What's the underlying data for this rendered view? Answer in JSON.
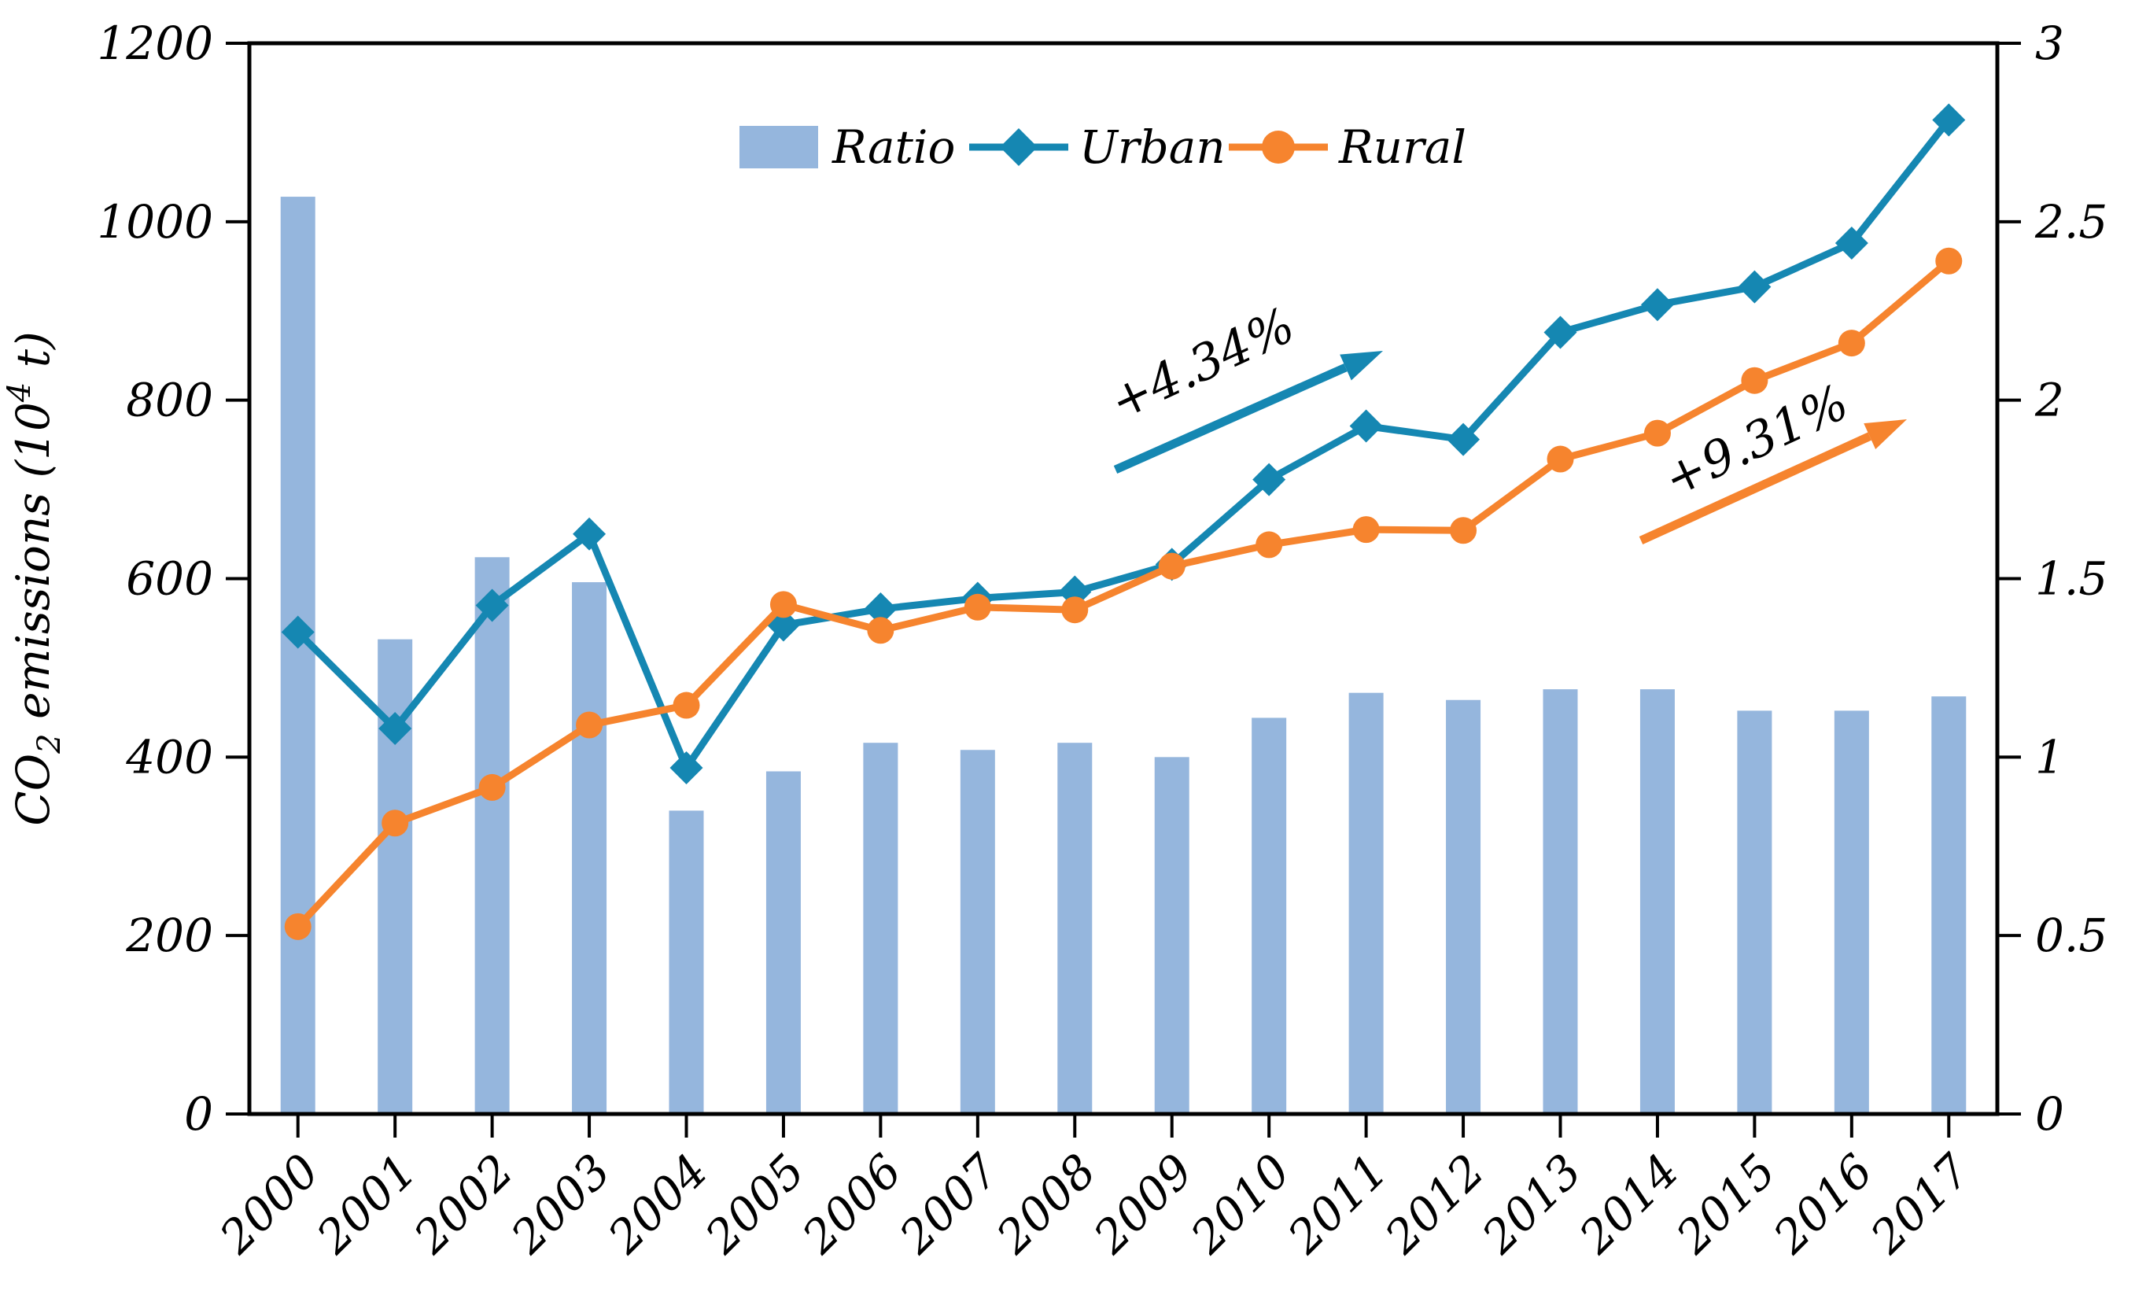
{
  "figure": {
    "background": "#ffffff",
    "axis_color": "#000000"
  },
  "legend": {
    "position": "top-center",
    "items": [
      {
        "label": "Ratio",
        "swatch": "bar-swatch",
        "color": "#95b6dd"
      },
      {
        "label": "Urban",
        "swatch": "line-diamond-swatch",
        "color": "#1587b2"
      },
      {
        "label": "Rural",
        "swatch": "line-circle-swatch",
        "color": "#f6842e"
      }
    ]
  },
  "y_axis_left": {
    "label_full": "CO₂ emissions (10⁴ t)",
    "label_parts": {
      "pre": "CO",
      "sub": "2",
      "mid": " emissions (10",
      "sup": "4",
      "post": " t)"
    },
    "tick_labels": [
      "0",
      "200",
      "400",
      "600",
      "800",
      "1000",
      "1200"
    ]
  },
  "y_axis_right": {
    "tick_labels": [
      "0",
      "0.5",
      "1",
      "1.5",
      "2",
      "2.5",
      "3"
    ]
  },
  "chart_data": {
    "type": "combo-bar-line",
    "categories": [
      "2000",
      "2001",
      "2002",
      "2003",
      "2004",
      "2005",
      "2006",
      "2007",
      "2008",
      "2009",
      "2010",
      "2011",
      "2012",
      "2013",
      "2014",
      "2015",
      "2016",
      "2017"
    ],
    "series": [
      {
        "name": "Ratio",
        "type": "bar",
        "axis": "right",
        "color": "#95b6dd",
        "values": [
          2.57,
          1.33,
          1.56,
          1.49,
          0.85,
          0.96,
          1.04,
          1.02,
          1.04,
          1.0,
          1.11,
          1.18,
          1.16,
          1.19,
          1.19,
          1.13,
          1.13,
          1.17
        ]
      },
      {
        "name": "Urban",
        "type": "line",
        "marker": "diamond",
        "axis": "left",
        "color": "#1587b2",
        "values": [
          540,
          432,
          570,
          650,
          388,
          548,
          566,
          578,
          585,
          616,
          711,
          771,
          756,
          876,
          907,
          927,
          976,
          1114
        ]
      },
      {
        "name": "Rural",
        "type": "line",
        "marker": "circle",
        "axis": "left",
        "color": "#f6842e",
        "values": [
          210,
          326,
          366,
          436,
          458,
          571,
          542,
          568,
          565,
          614,
          638,
          655,
          654,
          734,
          763,
          822,
          864,
          956
        ]
      }
    ],
    "left_axis": {
      "label": "CO2 emissions (10^4 t)",
      "min": 0,
      "max": 1200,
      "ticks": [
        0,
        200,
        400,
        600,
        800,
        1000,
        1200
      ]
    },
    "right_axis": {
      "min": 0,
      "max": 3,
      "ticks": [
        0,
        0.5,
        1,
        1.5,
        2,
        2.5,
        3
      ]
    },
    "grid": false,
    "legend_entries": [
      "Ratio",
      "Urban",
      "Rural"
    ],
    "annotations": [
      {
        "text": "+4.34%",
        "series": "Urban",
        "color": "#1587b2"
      },
      {
        "text": "+9.31%",
        "series": "Rural",
        "color": "#f6842e"
      }
    ]
  }
}
